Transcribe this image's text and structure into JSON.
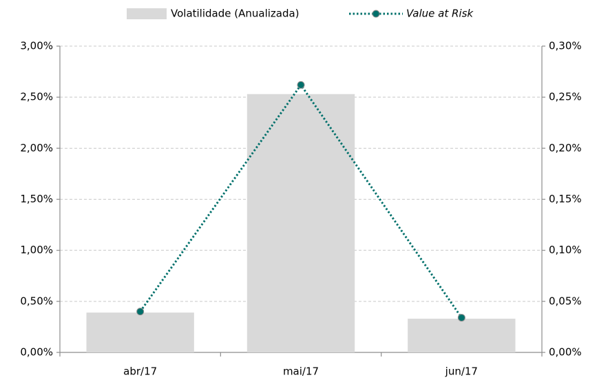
{
  "chart_data": {
    "type": "bar_line",
    "categories": [
      "abr/17",
      "mai/17",
      "jun/17"
    ],
    "series": [
      {
        "name": "Volatilidade (Anualizada)",
        "type": "bar",
        "color": "#d9d9d9",
        "values": [
          0.39,
          2.53,
          0.33
        ]
      },
      {
        "name": "Value at Risk",
        "type": "line",
        "color": "#00706b",
        "axis": "y2",
        "values": [
          0.04,
          0.262,
          0.034
        ]
      }
    ],
    "ylim": [
      0,
      3
    ],
    "yticks": [
      {
        "value": 0,
        "label": "0,00%"
      },
      {
        "value": 0.5,
        "label": "0,50%"
      },
      {
        "value": 1,
        "label": "1,00%"
      },
      {
        "value": 1.5,
        "label": "1,50%"
      },
      {
        "value": 2,
        "label": "2,00%"
      },
      {
        "value": 2.5,
        "label": "2,50%"
      },
      {
        "value": 3,
        "label": "3,00%"
      }
    ],
    "y2lim": [
      0,
      0.3
    ],
    "y2ticks": [
      {
        "value": 0,
        "label": "0,00%"
      },
      {
        "value": 0.05,
        "label": "0,05%"
      },
      {
        "value": 0.1,
        "label": "0,10%"
      },
      {
        "value": 0.15,
        "label": "0,15%"
      },
      {
        "value": 0.2,
        "label": "0,20%"
      },
      {
        "value": 0.25,
        "label": "0,25%"
      },
      {
        "value": 0.3,
        "label": "0,30%"
      }
    ],
    "grid": true,
    "legend": "top"
  }
}
